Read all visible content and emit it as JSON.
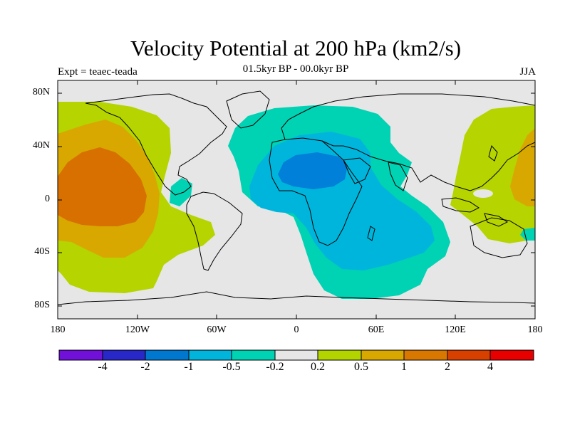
{
  "header": {
    "title": "Velocity Potential at 200 hPa (km2/s)",
    "subtitle": "01.5kyr BP - 00.0kyr BP",
    "left_label": "Expt = teaec-teada",
    "right_label": "JJA"
  },
  "map": {
    "projection": "cylindrical equidistant",
    "lon_range": [
      -180,
      180
    ],
    "lat_range": [
      -90,
      90
    ],
    "land_color": "#e6e6e6",
    "coastline_color": "#000000",
    "y_ticks": [
      "80N",
      "40N",
      "0",
      "40S",
      "80S"
    ],
    "x_ticks": [
      "180",
      "120W",
      "60W",
      "0",
      "60E",
      "120E",
      "180"
    ],
    "regions": [
      {
        "name": "pacific-yellow",
        "level": "0.2 to 0.5",
        "color": "#b5d400"
      },
      {
        "name": "pacific-gold",
        "level": "0.5 to 1",
        "color": "#d8a800"
      },
      {
        "name": "pacific-orange",
        "level": "1 to 2",
        "color": "#d87000"
      },
      {
        "name": "west-pacific-yellow",
        "level": "0.2 to 0.5",
        "color": "#b5d400"
      },
      {
        "name": "west-pacific-gold",
        "level": "0.5 to 1",
        "color": "#d8a800"
      },
      {
        "name": "atlantic-africa-teal",
        "level": "-0.5 to -0.2",
        "color": "#00d2b4"
      },
      {
        "name": "africa-cyan",
        "level": "-1 to -0.5",
        "color": "#00b5dc"
      },
      {
        "name": "sahara-blue",
        "level": "-2 to -1",
        "color": "#0080d8"
      }
    ]
  },
  "colorbar": {
    "colors": [
      "#7010d8",
      "#2828c8",
      "#0078d0",
      "#00b4dc",
      "#00d2b4",
      "#e6e6e6",
      "#b4d400",
      "#d8a800",
      "#d87800",
      "#d84000",
      "#e80000"
    ],
    "labels": [
      "-4",
      "-2",
      "-1",
      "-0.5",
      "-0.2",
      "0.2",
      "0.5",
      "1",
      "2",
      "4"
    ]
  }
}
